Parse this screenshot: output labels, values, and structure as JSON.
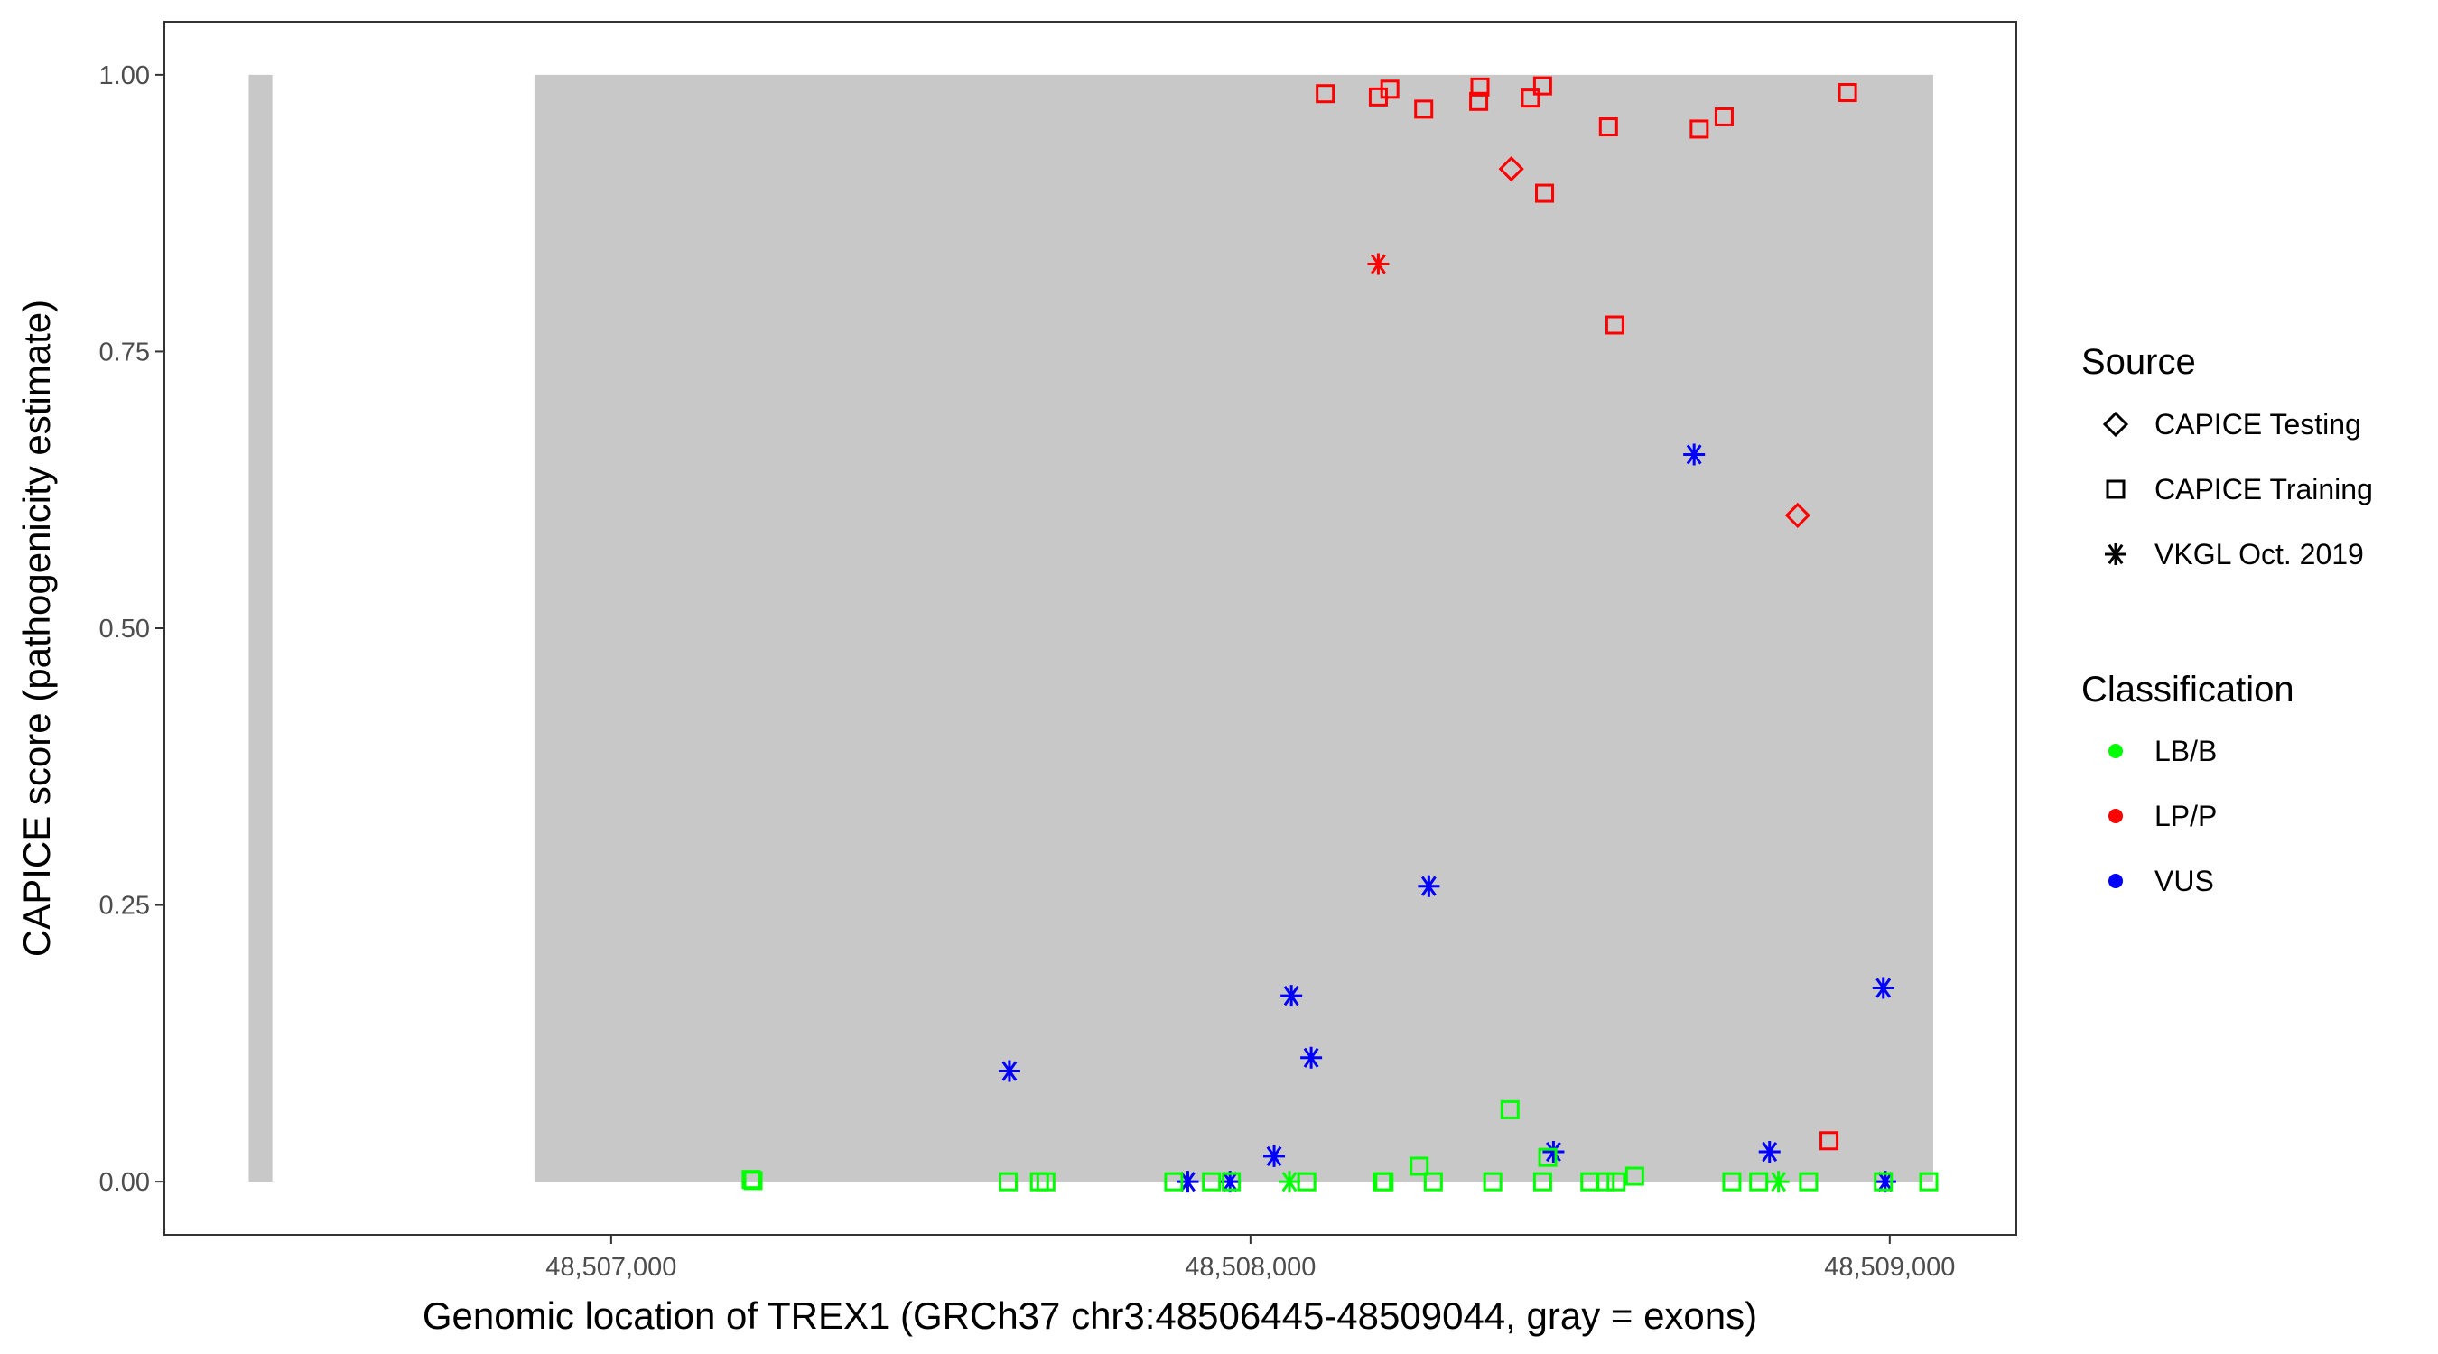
{
  "chart_data": {
    "type": "scatter",
    "xlabel": "Genomic location of TREX1 (GRCh37 chr3:48506445-48509044, gray = exons)",
    "ylabel": "CAPICE score (pathogenicity estimate)",
    "xlim": [
      48506301,
      48509198
    ],
    "ylim": [
      -0.048,
      1.048
    ],
    "x_ticks": [
      48507000,
      48508000,
      48509000
    ],
    "x_tick_labels": [
      "48,507,000",
      "48,508,000",
      "48,509,000"
    ],
    "y_ticks": [
      0,
      0.25,
      0.5,
      0.75,
      1.0
    ],
    "y_tick_labels": [
      "0.00",
      "0.25",
      "0.50",
      "0.75",
      "1.00"
    ],
    "grid": false,
    "exons": [
      [
        48506433,
        48506470
      ],
      [
        48506880,
        48509068
      ]
    ],
    "exon_color": "#c8c8c8",
    "legend": {
      "placement": "right",
      "source_title": "Source",
      "source_entries": [
        {
          "label": "CAPICE Testing",
          "shape": "diamond"
        },
        {
          "label": "CAPICE Training",
          "shape": "square"
        },
        {
          "label": "VKGL Oct. 2019",
          "shape": "asterisk"
        }
      ],
      "class_title": "Classification",
      "class_entries": [
        {
          "label": "LB/B",
          "color": "#00ff00"
        },
        {
          "label": "LP/P",
          "color": "#ff0000"
        },
        {
          "label": "VUS",
          "color": "#0000ff"
        }
      ]
    },
    "points": [
      {
        "x": 48508117,
        "y": 0.983,
        "s": "square",
        "c": "LP/P"
      },
      {
        "x": 48508200,
        "y": 0.98,
        "s": "square",
        "c": "LP/P"
      },
      {
        "x": 48508218,
        "y": 0.987,
        "s": "square",
        "c": "LP/P"
      },
      {
        "x": 48508271,
        "y": 0.969,
        "s": "square",
        "c": "LP/P"
      },
      {
        "x": 48508357,
        "y": 0.976,
        "s": "square",
        "c": "LP/P"
      },
      {
        "x": 48508359,
        "y": 0.989,
        "s": "square",
        "c": "LP/P"
      },
      {
        "x": 48508438,
        "y": 0.979,
        "s": "square",
        "c": "LP/P"
      },
      {
        "x": 48508457,
        "y": 0.99,
        "s": "square",
        "c": "LP/P"
      },
      {
        "x": 48508460,
        "y": 0.893,
        "s": "square",
        "c": "LP/P"
      },
      {
        "x": 48508560,
        "y": 0.953,
        "s": "square",
        "c": "LP/P"
      },
      {
        "x": 48508570,
        "y": 0.774,
        "s": "square",
        "c": "LP/P"
      },
      {
        "x": 48508702,
        "y": 0.951,
        "s": "square",
        "c": "LP/P"
      },
      {
        "x": 48508741,
        "y": 0.962,
        "s": "square",
        "c": "LP/P"
      },
      {
        "x": 48508934,
        "y": 0.984,
        "s": "square",
        "c": "LP/P"
      },
      {
        "x": 48508905,
        "y": 0.037,
        "s": "square",
        "c": "LP/P"
      },
      {
        "x": 48508408,
        "y": 0.915,
        "s": "diamond",
        "c": "LP/P"
      },
      {
        "x": 48508856,
        "y": 0.602,
        "s": "diamond",
        "c": "LP/P"
      },
      {
        "x": 48508200,
        "y": 0.829,
        "s": "asterisk",
        "c": "LP/P"
      },
      {
        "x": 48508694,
        "y": 0.657,
        "s": "asterisk",
        "c": "VUS"
      },
      {
        "x": 48508279,
        "y": 0.267,
        "s": "asterisk",
        "c": "VUS"
      },
      {
        "x": 48508064,
        "y": 0.168,
        "s": "asterisk",
        "c": "VUS"
      },
      {
        "x": 48508095,
        "y": 0.112,
        "s": "asterisk",
        "c": "VUS"
      },
      {
        "x": 48507623,
        "y": 0.1,
        "s": "asterisk",
        "c": "VUS"
      },
      {
        "x": 48508990,
        "y": 0.175,
        "s": "asterisk",
        "c": "VUS"
      },
      {
        "x": 48508037,
        "y": 0.023,
        "s": "asterisk",
        "c": "VUS"
      },
      {
        "x": 48508474,
        "y": 0.027,
        "s": "asterisk",
        "c": "VUS"
      },
      {
        "x": 48508812,
        "y": 0.027,
        "s": "asterisk",
        "c": "VUS"
      },
      {
        "x": 48507902,
        "y": 0.0,
        "s": "asterisk",
        "c": "VUS"
      },
      {
        "x": 48507968,
        "y": 0.0,
        "s": "asterisk",
        "c": "VUS"
      },
      {
        "x": 48508993,
        "y": 0.0,
        "s": "asterisk",
        "c": "VUS"
      },
      {
        "x": 48507219,
        "y": 0.002,
        "s": "square",
        "c": "LB/B"
      },
      {
        "x": 48507222,
        "y": 0.001,
        "s": "square",
        "c": "LB/B"
      },
      {
        "x": 48507621,
        "y": 0.0,
        "s": "square",
        "c": "LB/B"
      },
      {
        "x": 48507670,
        "y": 0.0,
        "s": "square",
        "c": "LB/B"
      },
      {
        "x": 48507680,
        "y": 0.0,
        "s": "square",
        "c": "LB/B"
      },
      {
        "x": 48507880,
        "y": 0.0,
        "s": "square",
        "c": "LB/B"
      },
      {
        "x": 48507939,
        "y": 0.0,
        "s": "square",
        "c": "LB/B"
      },
      {
        "x": 48507970,
        "y": 0.0,
        "s": "square",
        "c": "LB/B"
      },
      {
        "x": 48508088,
        "y": 0.0,
        "s": "square",
        "c": "LB/B"
      },
      {
        "x": 48508206,
        "y": 0.0,
        "s": "square",
        "c": "LB/B"
      },
      {
        "x": 48508209,
        "y": 0.0,
        "s": "square",
        "c": "LB/B"
      },
      {
        "x": 48508286,
        "y": 0.0,
        "s": "square",
        "c": "LB/B"
      },
      {
        "x": 48508379,
        "y": 0.0,
        "s": "square",
        "c": "LB/B"
      },
      {
        "x": 48508457,
        "y": 0.0,
        "s": "square",
        "c": "LB/B"
      },
      {
        "x": 48508531,
        "y": 0.0,
        "s": "square",
        "c": "LB/B"
      },
      {
        "x": 48508555,
        "y": 0.0,
        "s": "square",
        "c": "LB/B"
      },
      {
        "x": 48508572,
        "y": 0.0,
        "s": "square",
        "c": "LB/B"
      },
      {
        "x": 48508601,
        "y": 0.005,
        "s": "square",
        "c": "LB/B"
      },
      {
        "x": 48508753,
        "y": 0.0,
        "s": "square",
        "c": "LB/B"
      },
      {
        "x": 48508795,
        "y": 0.0,
        "s": "square",
        "c": "LB/B"
      },
      {
        "x": 48508873,
        "y": 0.0,
        "s": "square",
        "c": "LB/B"
      },
      {
        "x": 48508990,
        "y": 0.0,
        "s": "square",
        "c": "LB/B"
      },
      {
        "x": 48509061,
        "y": 0.0,
        "s": "square",
        "c": "LB/B"
      },
      {
        "x": 48508406,
        "y": 0.065,
        "s": "square",
        "c": "LB/B"
      },
      {
        "x": 48508264,
        "y": 0.014,
        "s": "square",
        "c": "LB/B"
      },
      {
        "x": 48508465,
        "y": 0.022,
        "s": "square",
        "c": "LB/B"
      },
      {
        "x": 48508061,
        "y": 0.0,
        "s": "asterisk",
        "c": "LB/B"
      },
      {
        "x": 48508826,
        "y": 0.0,
        "s": "asterisk",
        "c": "LB/B"
      }
    ]
  }
}
